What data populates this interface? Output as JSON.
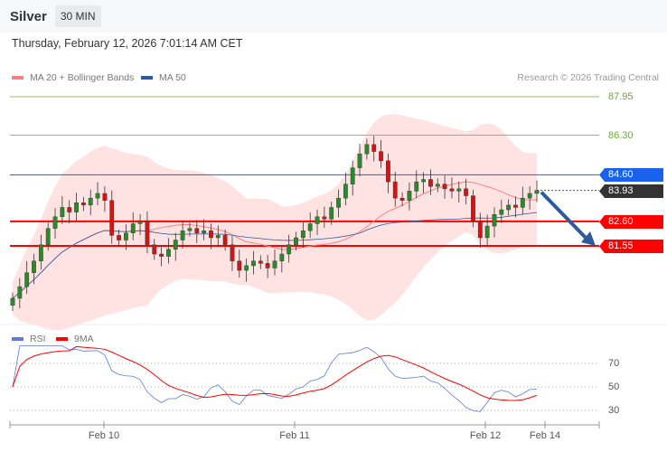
{
  "header": {
    "title": "Silver",
    "timeframe": "30 MIN"
  },
  "timestamp": "Thursday, February 12, 2026 7:01:14 AM CET",
  "legend": {
    "ma20": "MA 20 + Bollinger Bands",
    "ma50": "MA 50",
    "ma20_color": "#ff7f7f",
    "ma50_color": "#2e5a99"
  },
  "credit": "Research © 2026 Trading Central",
  "levels": {
    "r2": "87.95",
    "r1": "86.30",
    "pivot": "84.60",
    "last": "83.93",
    "s1": "82.60",
    "s2": "81.55"
  },
  "colors": {
    "resistance": "#88c25a",
    "pivot": "#1a62ee",
    "support": "#ff0000",
    "last": "#333333",
    "up": "#2a8a2a",
    "down": "#d11414"
  },
  "rsi_legend": {
    "rsi": "RSI",
    "ma": "9MA"
  },
  "rsi_levels": [
    "70",
    "50",
    "30"
  ],
  "x_labels": [
    "Feb 10",
    "Feb 11",
    "Feb 12",
    "Feb 14"
  ],
  "chart_data": {
    "type": "candlestick",
    "closes": [
      79.3,
      79.8,
      80.4,
      80.9,
      81.6,
      82.3,
      82.8,
      83.2,
      83.0,
      83.4,
      83.3,
      83.6,
      83.8,
      83.5,
      82.0,
      81.8,
      82.1,
      82.5,
      82.6,
      81.6,
      81.2,
      81.1,
      81.4,
      81.8,
      82.2,
      82.3,
      82.1,
      82.2,
      81.9,
      82.0,
      81.6,
      80.9,
      80.5,
      80.7,
      80.9,
      80.8,
      80.6,
      80.9,
      81.2,
      81.6,
      81.9,
      82.2,
      82.5,
      82.8,
      82.7,
      83.2,
      83.6,
      84.2,
      84.9,
      85.5,
      85.9,
      85.6,
      85.2,
      84.3,
      83.6,
      83.5,
      83.9,
      84.3,
      84.4,
      84.1,
      84.2,
      84.0,
      83.9,
      84.0,
      83.7,
      82.6,
      81.9,
      82.4,
      82.9,
      83.1,
      83.3,
      83.2,
      83.6,
      83.8,
      83.93
    ],
    "ylim": [
      78.5,
      88.5
    ],
    "forecast": {
      "from": 83.93,
      "to": 81.55
    }
  }
}
